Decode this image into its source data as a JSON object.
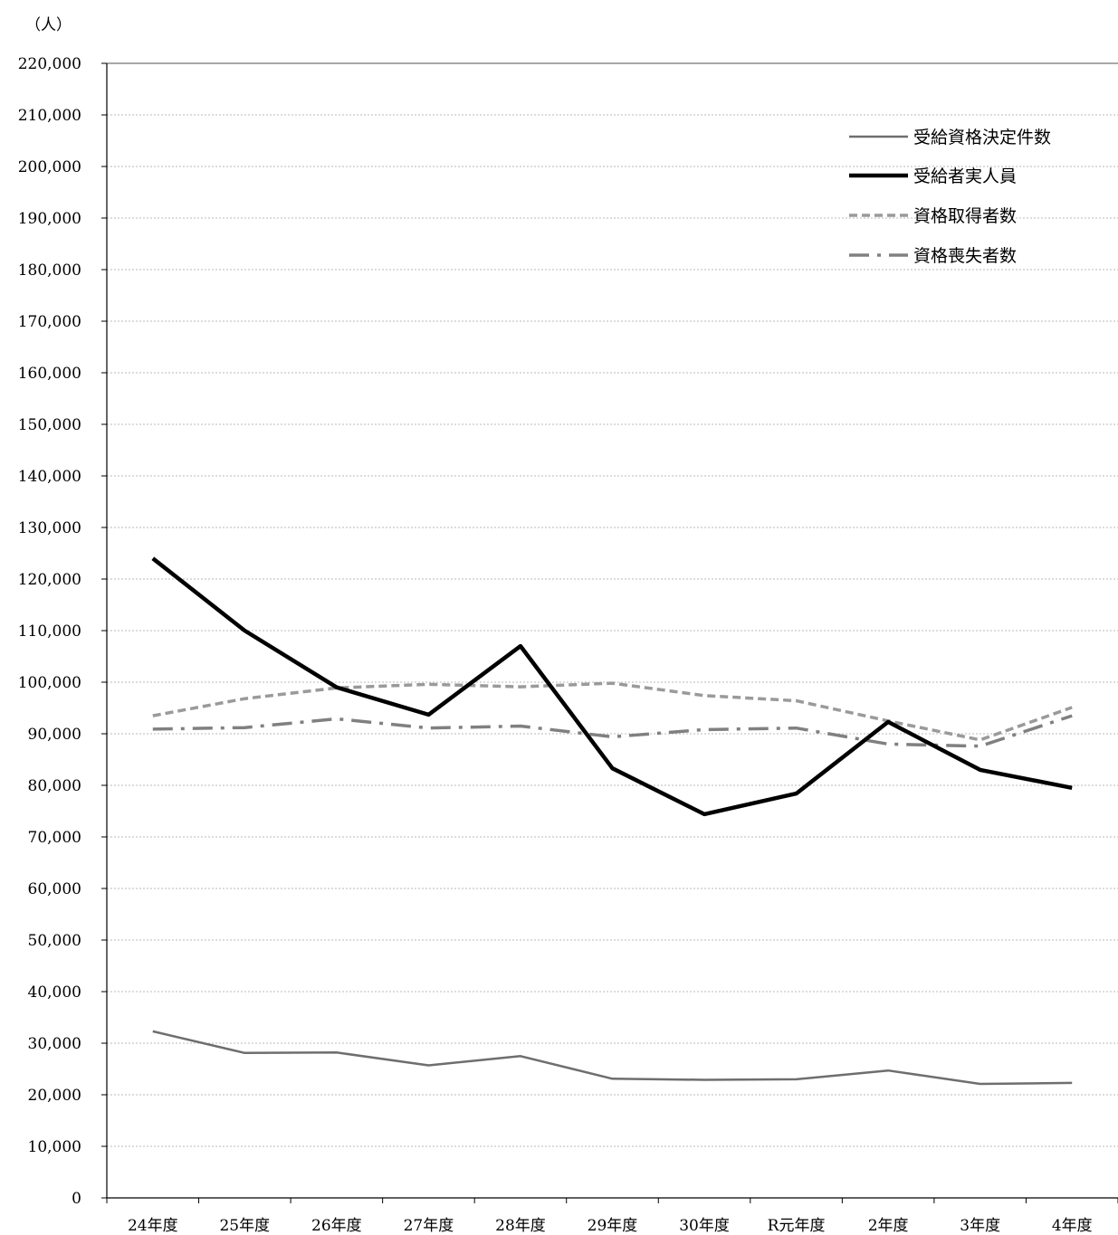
{
  "chart_data": {
    "type": "line",
    "ylabel": "（人）",
    "ylim": [
      0,
      220000
    ],
    "y_ticks": [
      0,
      10000,
      20000,
      30000,
      40000,
      50000,
      60000,
      70000,
      80000,
      90000,
      100000,
      110000,
      120000,
      130000,
      140000,
      150000,
      160000,
      170000,
      180000,
      190000,
      200000,
      210000,
      220000
    ],
    "y_tick_labels": [
      "0",
      "10,000",
      "20,000",
      "30,000",
      "40,000",
      "50,000",
      "60,000",
      "70,000",
      "80,000",
      "90,000",
      "100,000",
      "110,000",
      "120,000",
      "130,000",
      "140,000",
      "150,000",
      "160,000",
      "170,000",
      "180,000",
      "190,000",
      "200,000",
      "210,000",
      "220,000"
    ],
    "categories": [
      "24年度",
      "25年度",
      "26年度",
      "27年度",
      "28年度",
      "29年度",
      "30年度",
      "R元年度",
      "2年度",
      "3年度",
      "4年度"
    ],
    "grid": true,
    "legend_position": "top-right",
    "series": [
      {
        "name": "受給資格決定件数",
        "style": "thin-solid",
        "color": "#6e6e6e",
        "values": [
          32300,
          28100,
          28200,
          25700,
          27500,
          23100,
          22900,
          23000,
          24700,
          22100,
          22300
        ]
      },
      {
        "name": "受給者実人員",
        "style": "thick-solid",
        "color": "#000000",
        "values": [
          124000,
          110000,
          99000,
          93700,
          107000,
          83300,
          74400,
          78400,
          92300,
          83000,
          79500
        ]
      },
      {
        "name": "資格取得者数",
        "style": "dashed",
        "color": "#9a9a9a",
        "values": [
          93500,
          96800,
          98900,
          99600,
          99100,
          99800,
          97400,
          96400,
          92500,
          88800,
          95100
        ]
      },
      {
        "name": "資格喪失者数",
        "style": "dash-dot",
        "color": "#808080",
        "values": [
          90900,
          91200,
          92900,
          91100,
          91500,
          89400,
          90800,
          91100,
          88000,
          87600,
          93500
        ]
      }
    ]
  }
}
